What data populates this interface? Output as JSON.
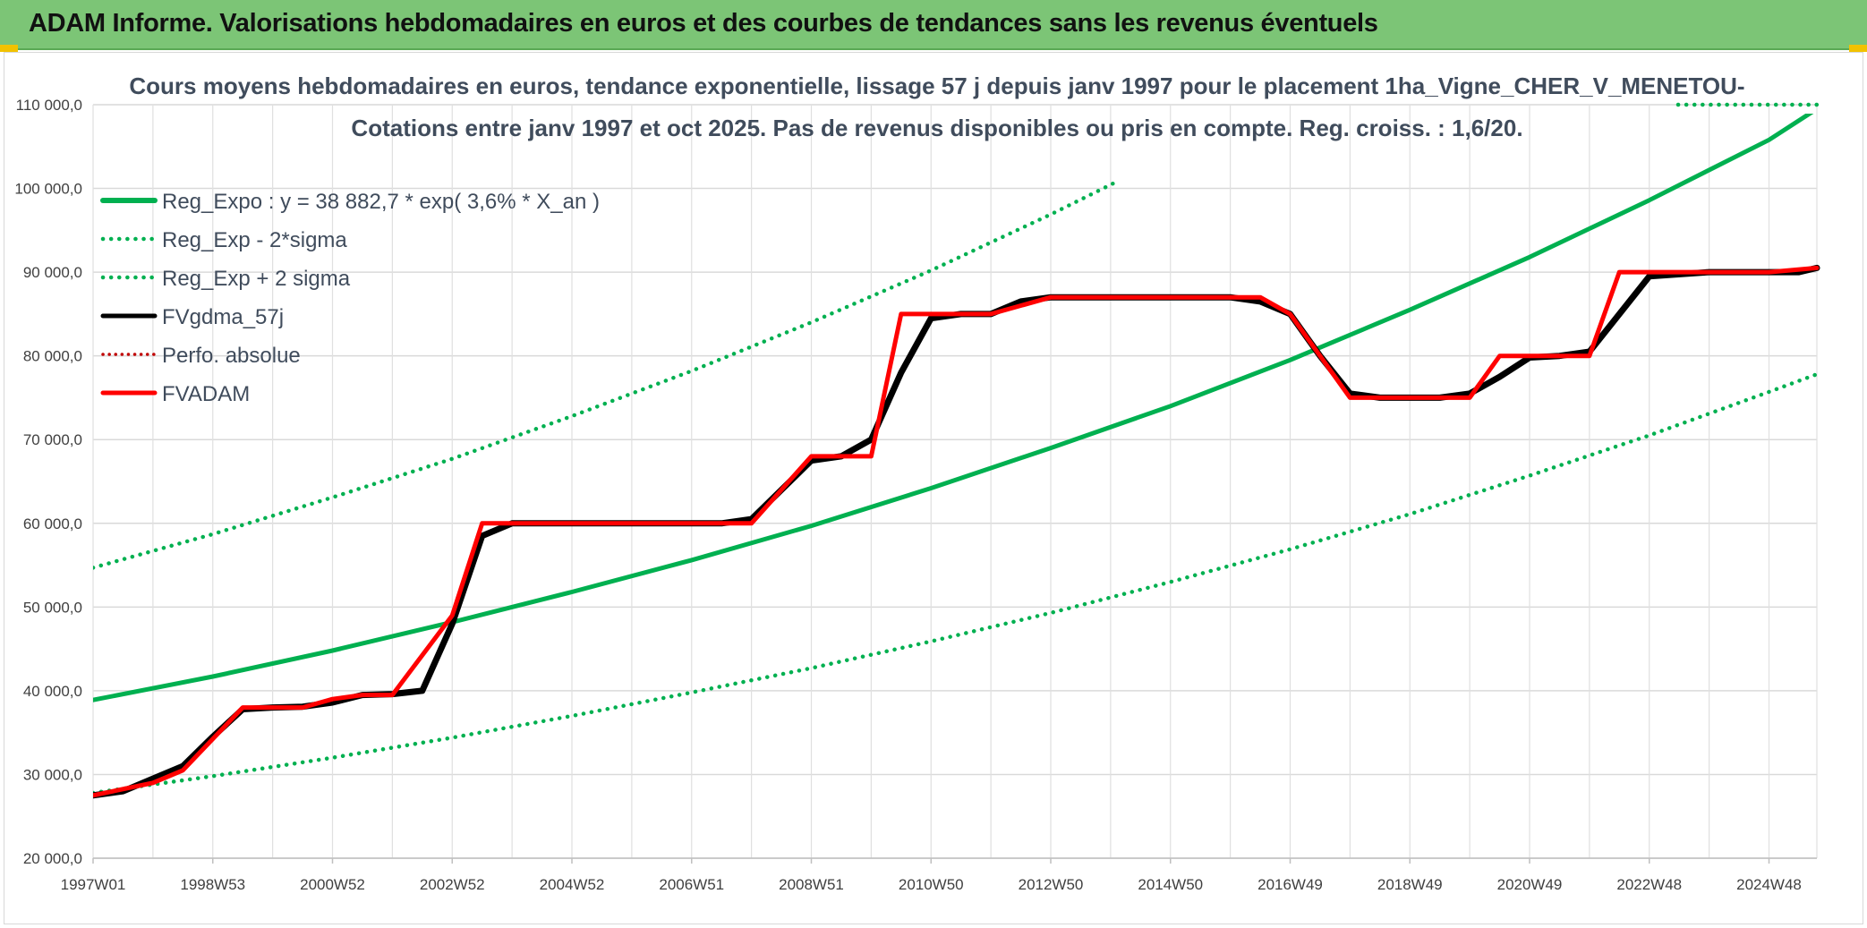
{
  "header": {
    "title": "ADAM Informe. Valorisations hebdomadaires en euros et des courbes de tendances sans les revenus éventuels"
  },
  "colors": {
    "header_bg": "#7cc576",
    "reg_green": "#00b050",
    "fvgdma_black": "#000000",
    "fvadam_red": "#ff0000",
    "perfo_red": "#c00000"
  },
  "chart_data": {
    "type": "line",
    "title_line1": "Cours moyens hebdomadaires en euros, tendance exponentielle, lissage 57 j depuis janv 1997 pour le placement 1ha_Vigne_CHER_V_MENETOU-",
    "title_line2": "Cotations entre janv 1997 et oct 2025. Pas de revenus disponibles ou pris en compte. Reg. croiss. : 1,6/20.",
    "xlabel": "",
    "ylabel": "",
    "x_range_years": [
      1997.0,
      2025.8
    ],
    "ylim": [
      20000,
      110000
    ],
    "y_ticks": [
      "20 000,0",
      "30 000,0",
      "40 000,0",
      "50 000,0",
      "60 000,0",
      "70 000,0",
      "80 000,0",
      "90 000,0",
      "100 000,0",
      "110 000,0"
    ],
    "x_ticks": [
      {
        "label": "1997W01",
        "year": 1997.0
      },
      {
        "label": "1998W53",
        "year": 1999.0
      },
      {
        "label": "2000W52",
        "year": 2001.0
      },
      {
        "label": "2002W52",
        "year": 2003.0
      },
      {
        "label": "2004W52",
        "year": 2005.0
      },
      {
        "label": "2006W51",
        "year": 2007.0
      },
      {
        "label": "2008W51",
        "year": 2009.0
      },
      {
        "label": "2010W50",
        "year": 2011.0
      },
      {
        "label": "2012W50",
        "year": 2013.0
      },
      {
        "label": "2014W50",
        "year": 2015.0
      },
      {
        "label": "2016W49",
        "year": 2017.0
      },
      {
        "label": "2018W49",
        "year": 2019.0
      },
      {
        "label": "2020W49",
        "year": 2021.0
      },
      {
        "label": "2022W48",
        "year": 2023.0
      },
      {
        "label": "2024W48",
        "year": 2025.0
      }
    ],
    "grid": true,
    "legend_position": "top-left",
    "legend": [
      {
        "key": "reg_expo",
        "label": "Reg_Expo : y = 38 882,7 * exp( 3,6% *  X_an )",
        "style": "solid-thick",
        "color": "#00b050"
      },
      {
        "key": "reg_minus",
        "label": "Reg_Exp - 2*sigma",
        "style": "dotted",
        "color": "#00b050"
      },
      {
        "key": "reg_plus",
        "label": "Reg_Exp + 2 sigma",
        "style": "dotted",
        "color": "#00b050"
      },
      {
        "key": "fvgdma",
        "label": "FVgdma_57j",
        "style": "solid",
        "color": "#000000"
      },
      {
        "key": "perfo",
        "label": "Perfo. absolue",
        "style": "dotted",
        "color": "#c00000"
      },
      {
        "key": "fvadam",
        "label": "FVADAM",
        "style": "solid-thick",
        "color": "#ff0000"
      }
    ],
    "series": [
      {
        "key": "reg_expo",
        "x": [
          1997.0,
          1999.0,
          2001.0,
          2003.0,
          2005.0,
          2007.0,
          2009.0,
          2011.0,
          2013.0,
          2015.0,
          2017.0,
          2019.0,
          2021.0,
          2023.0,
          2025.0,
          2025.8
        ],
        "y": [
          38900,
          41700,
          44800,
          48200,
          51800,
          55600,
          59700,
          64200,
          69000,
          74000,
          79500,
          85500,
          91800,
          98600,
          105800,
          109500
        ]
      },
      {
        "key": "reg_minus",
        "x": [
          1997.0,
          1999.0,
          2001.0,
          2003.0,
          2005.0,
          2007.0,
          2009.0,
          2011.0,
          2013.0,
          2015.0,
          2017.0,
          2019.0,
          2021.0,
          2023.0,
          2025.0,
          2025.8
        ],
        "y": [
          27800,
          29800,
          32000,
          34400,
          37000,
          39800,
          42700,
          45900,
          49300,
          53000,
          56900,
          61100,
          65700,
          70500,
          75700,
          77800
        ]
      },
      {
        "key": "reg_plus",
        "x": [
          1997.0,
          1999.0,
          2001.0,
          2003.0,
          2005.0,
          2007.0,
          2009.0,
          2011.0,
          2013.0,
          2014.1
        ],
        "y": [
          54700,
          58700,
          63100,
          67700,
          72800,
          78200,
          84000,
          90200,
          96900,
          100800
        ]
      },
      {
        "key": "fvgdma",
        "x": [
          1997.0,
          1997.5,
          1998.0,
          1998.5,
          1999.0,
          1999.5,
          2000.0,
          2000.5,
          2001.0,
          2001.5,
          2002.0,
          2002.5,
          2003.0,
          2003.5,
          2004.0,
          2006.0,
          2007.0,
          2007.5,
          2008.0,
          2008.5,
          2009.0,
          2009.5,
          2010.0,
          2010.5,
          2011.0,
          2011.5,
          2012.0,
          2012.5,
          2013.0,
          2015.0,
          2016.0,
          2016.5,
          2017.0,
          2017.5,
          2018.0,
          2018.5,
          2019.0,
          2019.5,
          2020.0,
          2020.5,
          2021.0,
          2021.5,
          2022.0,
          2022.5,
          2023.0,
          2024.0,
          2025.0,
          2025.5,
          2025.8
        ],
        "y": [
          27500,
          28000,
          29500,
          31000,
          34500,
          37800,
          38000,
          38100,
          38600,
          39500,
          39600,
          40000,
          48000,
          58500,
          60000,
          60000,
          60000,
          60000,
          60500,
          64000,
          67500,
          68000,
          70000,
          78000,
          84500,
          85000,
          85000,
          86500,
          87000,
          87000,
          87000,
          86500,
          85000,
          80000,
          75500,
          75000,
          75000,
          75000,
          75500,
          77500,
          79800,
          80000,
          80500,
          85000,
          89500,
          90000,
          90000,
          90000,
          90500
        ]
      },
      {
        "key": "fvadam",
        "x": [
          1997.0,
          1998.0,
          1998.5,
          1999.5,
          2000.0,
          2000.5,
          2001.0,
          2001.5,
          2002.0,
          2003.0,
          2003.5,
          2006.0,
          2007.0,
          2007.5,
          2008.0,
          2009.0,
          2009.5,
          2010.0,
          2010.5,
          2011.0,
          2012.0,
          2013.0,
          2015.0,
          2016.0,
          2016.5,
          2017.0,
          2017.5,
          2018.0,
          2018.5,
          2019.0,
          2019.5,
          2020.0,
          2020.5,
          2021.0,
          2021.5,
          2022.0,
          2022.5,
          2023.0,
          2025.0,
          2025.8
        ],
        "y": [
          27500,
          29000,
          30500,
          38000,
          38000,
          38000,
          39000,
          39500,
          39500,
          49000,
          60000,
          60000,
          60000,
          60000,
          60000,
          68000,
          68000,
          68000,
          85000,
          85000,
          85000,
          87000,
          87000,
          87000,
          87000,
          85000,
          80000,
          75000,
          75000,
          75000,
          75000,
          75000,
          80000,
          80000,
          80000,
          80000,
          90000,
          90000,
          90000,
          90500
        ]
      }
    ]
  }
}
